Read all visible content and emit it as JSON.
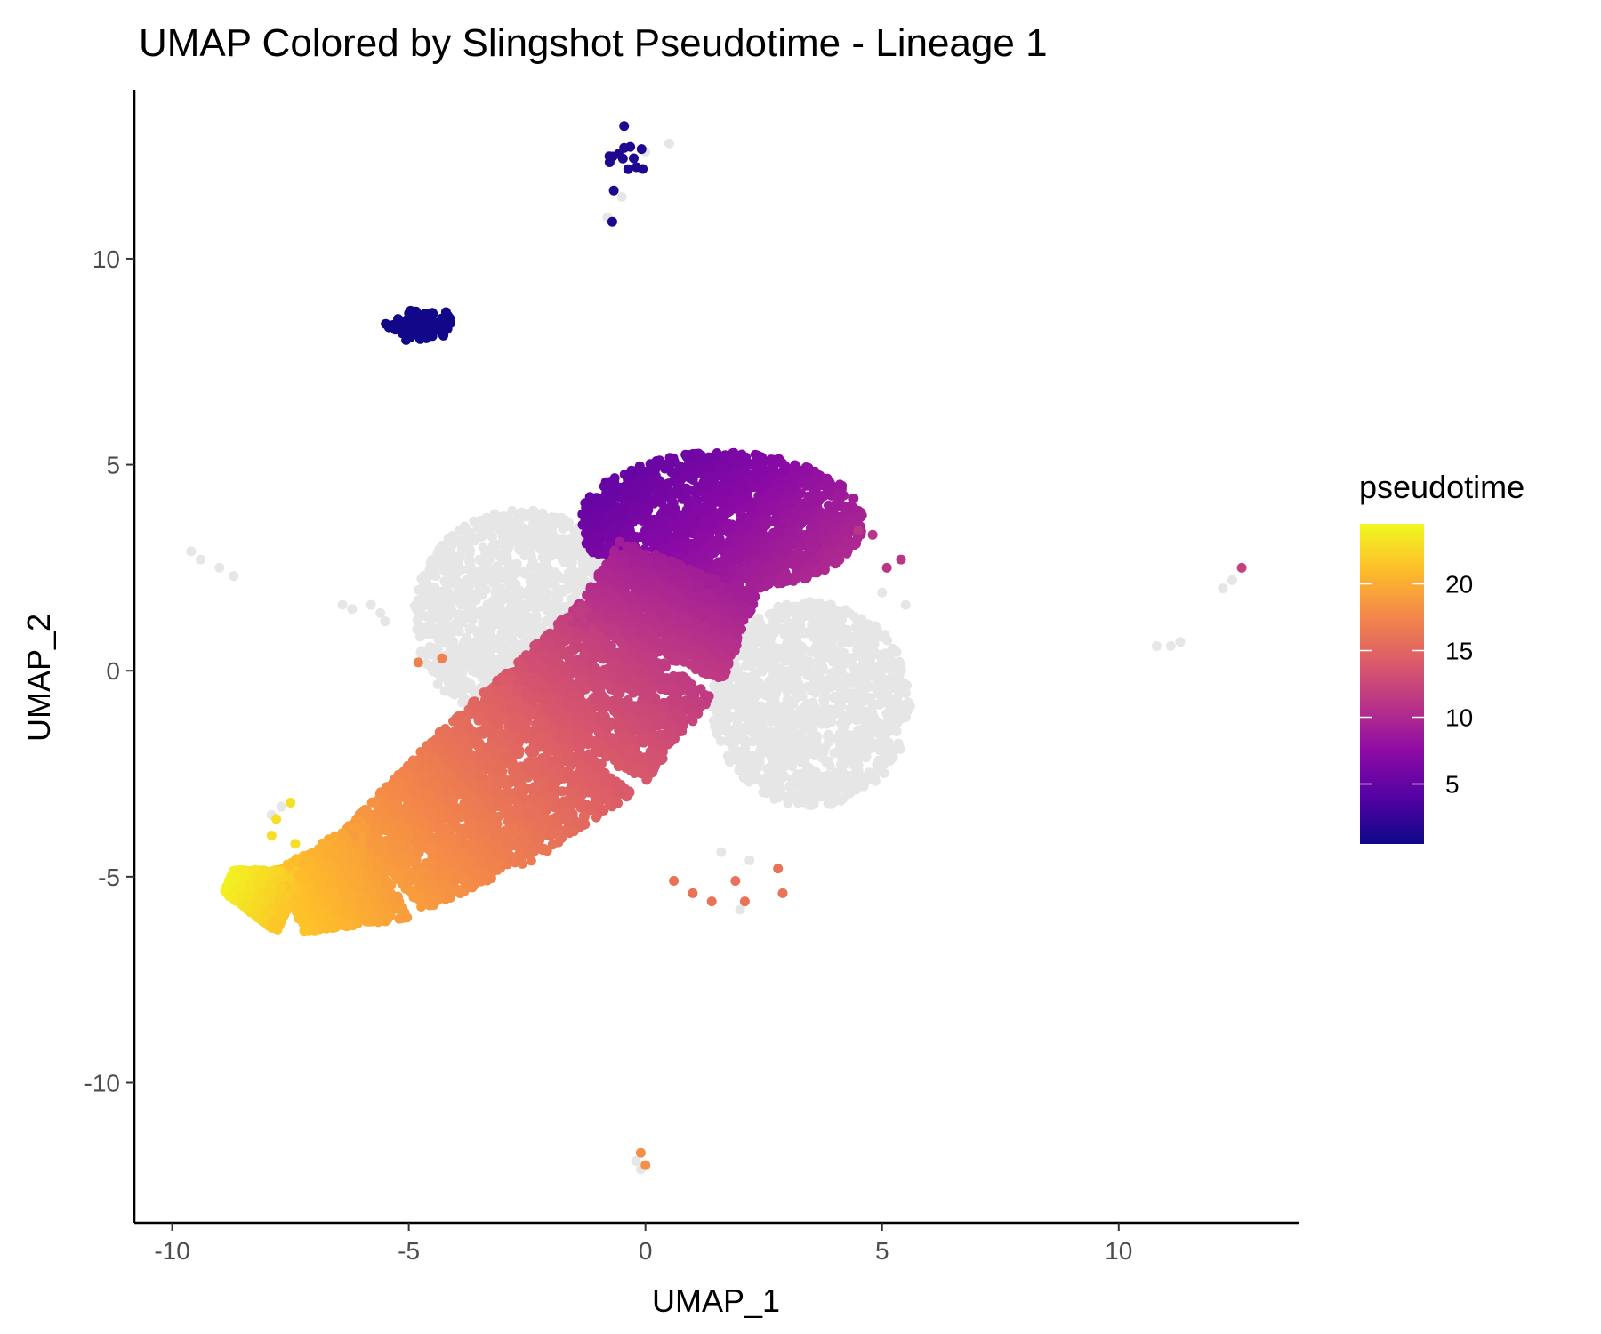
{
  "chart_data": {
    "type": "scatter",
    "title": "UMAP Colored by Slingshot Pseudotime - Lineage 1",
    "xlabel": "UMAP_1",
    "ylabel": "UMAP_2",
    "xlim": [
      -10.8,
      13.8
    ],
    "ylim": [
      -13.4,
      14.1
    ],
    "xticks": [
      -10,
      -5,
      0,
      5,
      10
    ],
    "yticks": [
      -10,
      -5,
      0,
      5,
      10
    ],
    "xtick_labels": [
      "-10",
      "-5",
      "0",
      "5",
      "10"
    ],
    "ytick_labels": [
      "-10",
      "-5",
      "0",
      "5",
      "10"
    ],
    "grid": false,
    "na_color": "#e6e6e6",
    "legend": {
      "title": "pseudotime",
      "position": "right",
      "range": [
        0.5,
        24.5
      ],
      "breaks": [
        5,
        10,
        15,
        20
      ],
      "break_labels": [
        "5",
        "10",
        "15",
        "20"
      ],
      "palette": [
        "#0d0887",
        "#5302a3",
        "#8b0aa5",
        "#b83289",
        "#db5c68",
        "#f48849",
        "#febd2a",
        "#f0f921"
      ]
    },
    "point_groups": [
      {
        "name": "NA region left",
        "shape": "ellipse",
        "cx": -2.6,
        "cy": 1.3,
        "rx": 2.3,
        "ry": 2.6,
        "pseudotime": null,
        "n": 1400
      },
      {
        "name": "NA region right",
        "shape": "ellipse",
        "cx": 3.5,
        "cy": -0.8,
        "rx": 2.1,
        "ry": 2.5,
        "pseudotime": null,
        "n": 1400
      },
      {
        "name": "top cap",
        "shape": "ellipse",
        "cx": 1.6,
        "cy": 3.6,
        "rx": 3.0,
        "ry": 1.7,
        "pseudotime_range": [
          4,
          11
        ],
        "n": 1800
      },
      {
        "name": "main trajectory",
        "shape": "path",
        "path_x": [
          0.9,
          0.0,
          -1.6,
          -3.5,
          -5.5,
          -7.5,
          -8.8
        ],
        "path_y": [
          2.5,
          0.5,
          -1.5,
          -3.2,
          -4.8,
          -5.6,
          -5.1
        ],
        "half_width": [
          1.6,
          1.8,
          2.0,
          1.8,
          1.3,
          0.8,
          0.3
        ],
        "pseudotime_range": [
          9,
          24
        ],
        "n": 6500
      },
      {
        "name": "top cluster",
        "shape": "cluster",
        "cx": -4.8,
        "cy": 8.4,
        "sx": 0.3,
        "sy": 0.15,
        "pseudotime": 0.8,
        "n": 140
      },
      {
        "name": "top small cluster",
        "shape": "cluster",
        "cx": -0.4,
        "cy": 12.4,
        "sx": 0.3,
        "sy": 0.3,
        "pseudotime": 1.5,
        "n": 14
      }
    ],
    "outliers": [
      {
        "x": -0.7,
        "y": 10.9,
        "pseudotime": 1.5
      },
      {
        "x": -0.8,
        "y": 11.0,
        "pseudotime": null
      },
      {
        "x": -0.5,
        "y": 11.5,
        "pseudotime": null
      },
      {
        "x": 0.0,
        "y": 12.6,
        "pseudotime": null
      },
      {
        "x": 0.5,
        "y": 12.8,
        "pseudotime": null
      },
      {
        "x": -9.6,
        "y": 2.9,
        "pseudotime": null
      },
      {
        "x": -9.4,
        "y": 2.7,
        "pseudotime": null
      },
      {
        "x": -9.0,
        "y": 2.5,
        "pseudotime": null
      },
      {
        "x": -8.7,
        "y": 2.3,
        "pseudotime": null
      },
      {
        "x": -6.4,
        "y": 1.6,
        "pseudotime": null
      },
      {
        "x": -6.2,
        "y": 1.5,
        "pseudotime": null
      },
      {
        "x": -5.8,
        "y": 1.6,
        "pseudotime": null
      },
      {
        "x": -5.6,
        "y": 1.4,
        "pseudotime": null
      },
      {
        "x": -5.5,
        "y": 1.2,
        "pseudotime": null
      },
      {
        "x": 12.2,
        "y": 2.0,
        "pseudotime": null
      },
      {
        "x": 12.4,
        "y": 2.2,
        "pseudotime": null
      },
      {
        "x": 12.6,
        "y": 2.5,
        "pseudotime": 12
      },
      {
        "x": 10.8,
        "y": 0.6,
        "pseudotime": null
      },
      {
        "x": 11.1,
        "y": 0.6,
        "pseudotime": null
      },
      {
        "x": 11.3,
        "y": 0.7,
        "pseudotime": null
      },
      {
        "x": 4.5,
        "y": 3.4,
        "pseudotime": 11
      },
      {
        "x": 4.8,
        "y": 3.3,
        "pseudotime": 11
      },
      {
        "x": 5.4,
        "y": 2.7,
        "pseudotime": 11
      },
      {
        "x": 5.1,
        "y": 2.5,
        "pseudotime": 11
      },
      {
        "x": 5.0,
        "y": 1.9,
        "pseudotime": null
      },
      {
        "x": 5.5,
        "y": 1.6,
        "pseudotime": null
      },
      {
        "x": -4.3,
        "y": 0.3,
        "pseudotime": 17
      },
      {
        "x": -4.8,
        "y": 0.2,
        "pseudotime": 17
      },
      {
        "x": 0.6,
        "y": -5.1,
        "pseudotime": 16
      },
      {
        "x": 1.0,
        "y": -5.4,
        "pseudotime": 16
      },
      {
        "x": 1.4,
        "y": -5.6,
        "pseudotime": 16
      },
      {
        "x": 1.9,
        "y": -5.1,
        "pseudotime": 16
      },
      {
        "x": 2.1,
        "y": -5.6,
        "pseudotime": 16
      },
      {
        "x": 2.8,
        "y": -4.8,
        "pseudotime": 16
      },
      {
        "x": 2.9,
        "y": -5.4,
        "pseudotime": 16
      },
      {
        "x": 2.0,
        "y": -5.8,
        "pseudotime": null
      },
      {
        "x": 1.6,
        "y": -4.4,
        "pseudotime": null
      },
      {
        "x": 2.2,
        "y": -4.6,
        "pseudotime": null
      },
      {
        "x": -7.5,
        "y": -3.2,
        "pseudotime": 23
      },
      {
        "x": -7.8,
        "y": -3.6,
        "pseudotime": 23
      },
      {
        "x": -7.9,
        "y": -4.0,
        "pseudotime": 23
      },
      {
        "x": -7.4,
        "y": -4.2,
        "pseudotime": 23
      },
      {
        "x": -7.7,
        "y": -3.3,
        "pseudotime": null
      },
      {
        "x": -7.9,
        "y": -3.5,
        "pseudotime": null
      },
      {
        "x": -0.1,
        "y": -11.7,
        "pseudotime": 18
      },
      {
        "x": 0.0,
        "y": -12.0,
        "pseudotime": 18
      },
      {
        "x": -0.2,
        "y": -11.9,
        "pseudotime": null
      },
      {
        "x": -0.1,
        "y": -12.1,
        "pseudotime": null
      }
    ]
  }
}
